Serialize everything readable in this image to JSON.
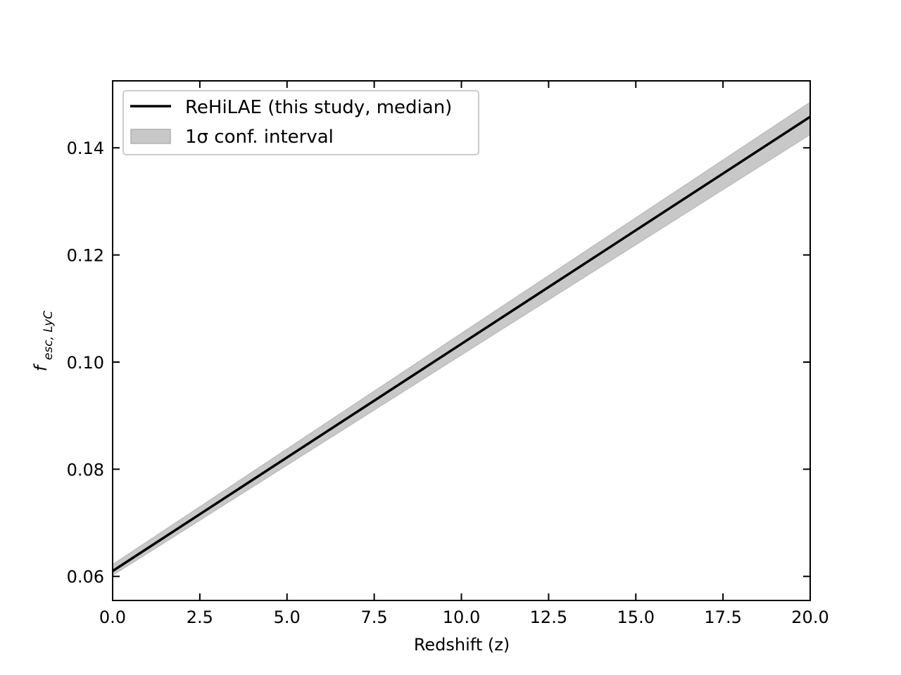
{
  "chart_data": {
    "type": "line",
    "xlabel": "Redshift (z)",
    "ylabel": {
      "main": "f",
      "sub": "esc, LyC"
    },
    "xlim": [
      0,
      20
    ],
    "ylim": [
      0.0555,
      0.1525
    ],
    "xticks": [
      0,
      2.5,
      5,
      7.5,
      10,
      12.5,
      15,
      17.5,
      20
    ],
    "xtick_labels": [
      "0.0",
      "2.5",
      "5.0",
      "7.5",
      "10.0",
      "12.5",
      "15.0",
      "17.5",
      "20.0"
    ],
    "yticks": [
      0.06,
      0.08,
      0.1,
      0.12,
      0.14
    ],
    "ytick_labels": [
      "0.06",
      "0.08",
      "0.10",
      "0.12",
      "0.14"
    ],
    "grid": false,
    "legend_position": "top-left",
    "series": [
      {
        "name": "ReHiLAE (this study, median)",
        "kind": "line",
        "color": "#000000",
        "x": [
          0,
          20
        ],
        "y": [
          0.061,
          0.1458
        ]
      },
      {
        "name": "1σ conf. interval",
        "kind": "band",
        "color": "#c8c8c8",
        "x": [
          0,
          20
        ],
        "y_lower": [
          0.0602,
          0.1425
        ],
        "y_upper": [
          0.0622,
          0.1485
        ]
      }
    ]
  }
}
